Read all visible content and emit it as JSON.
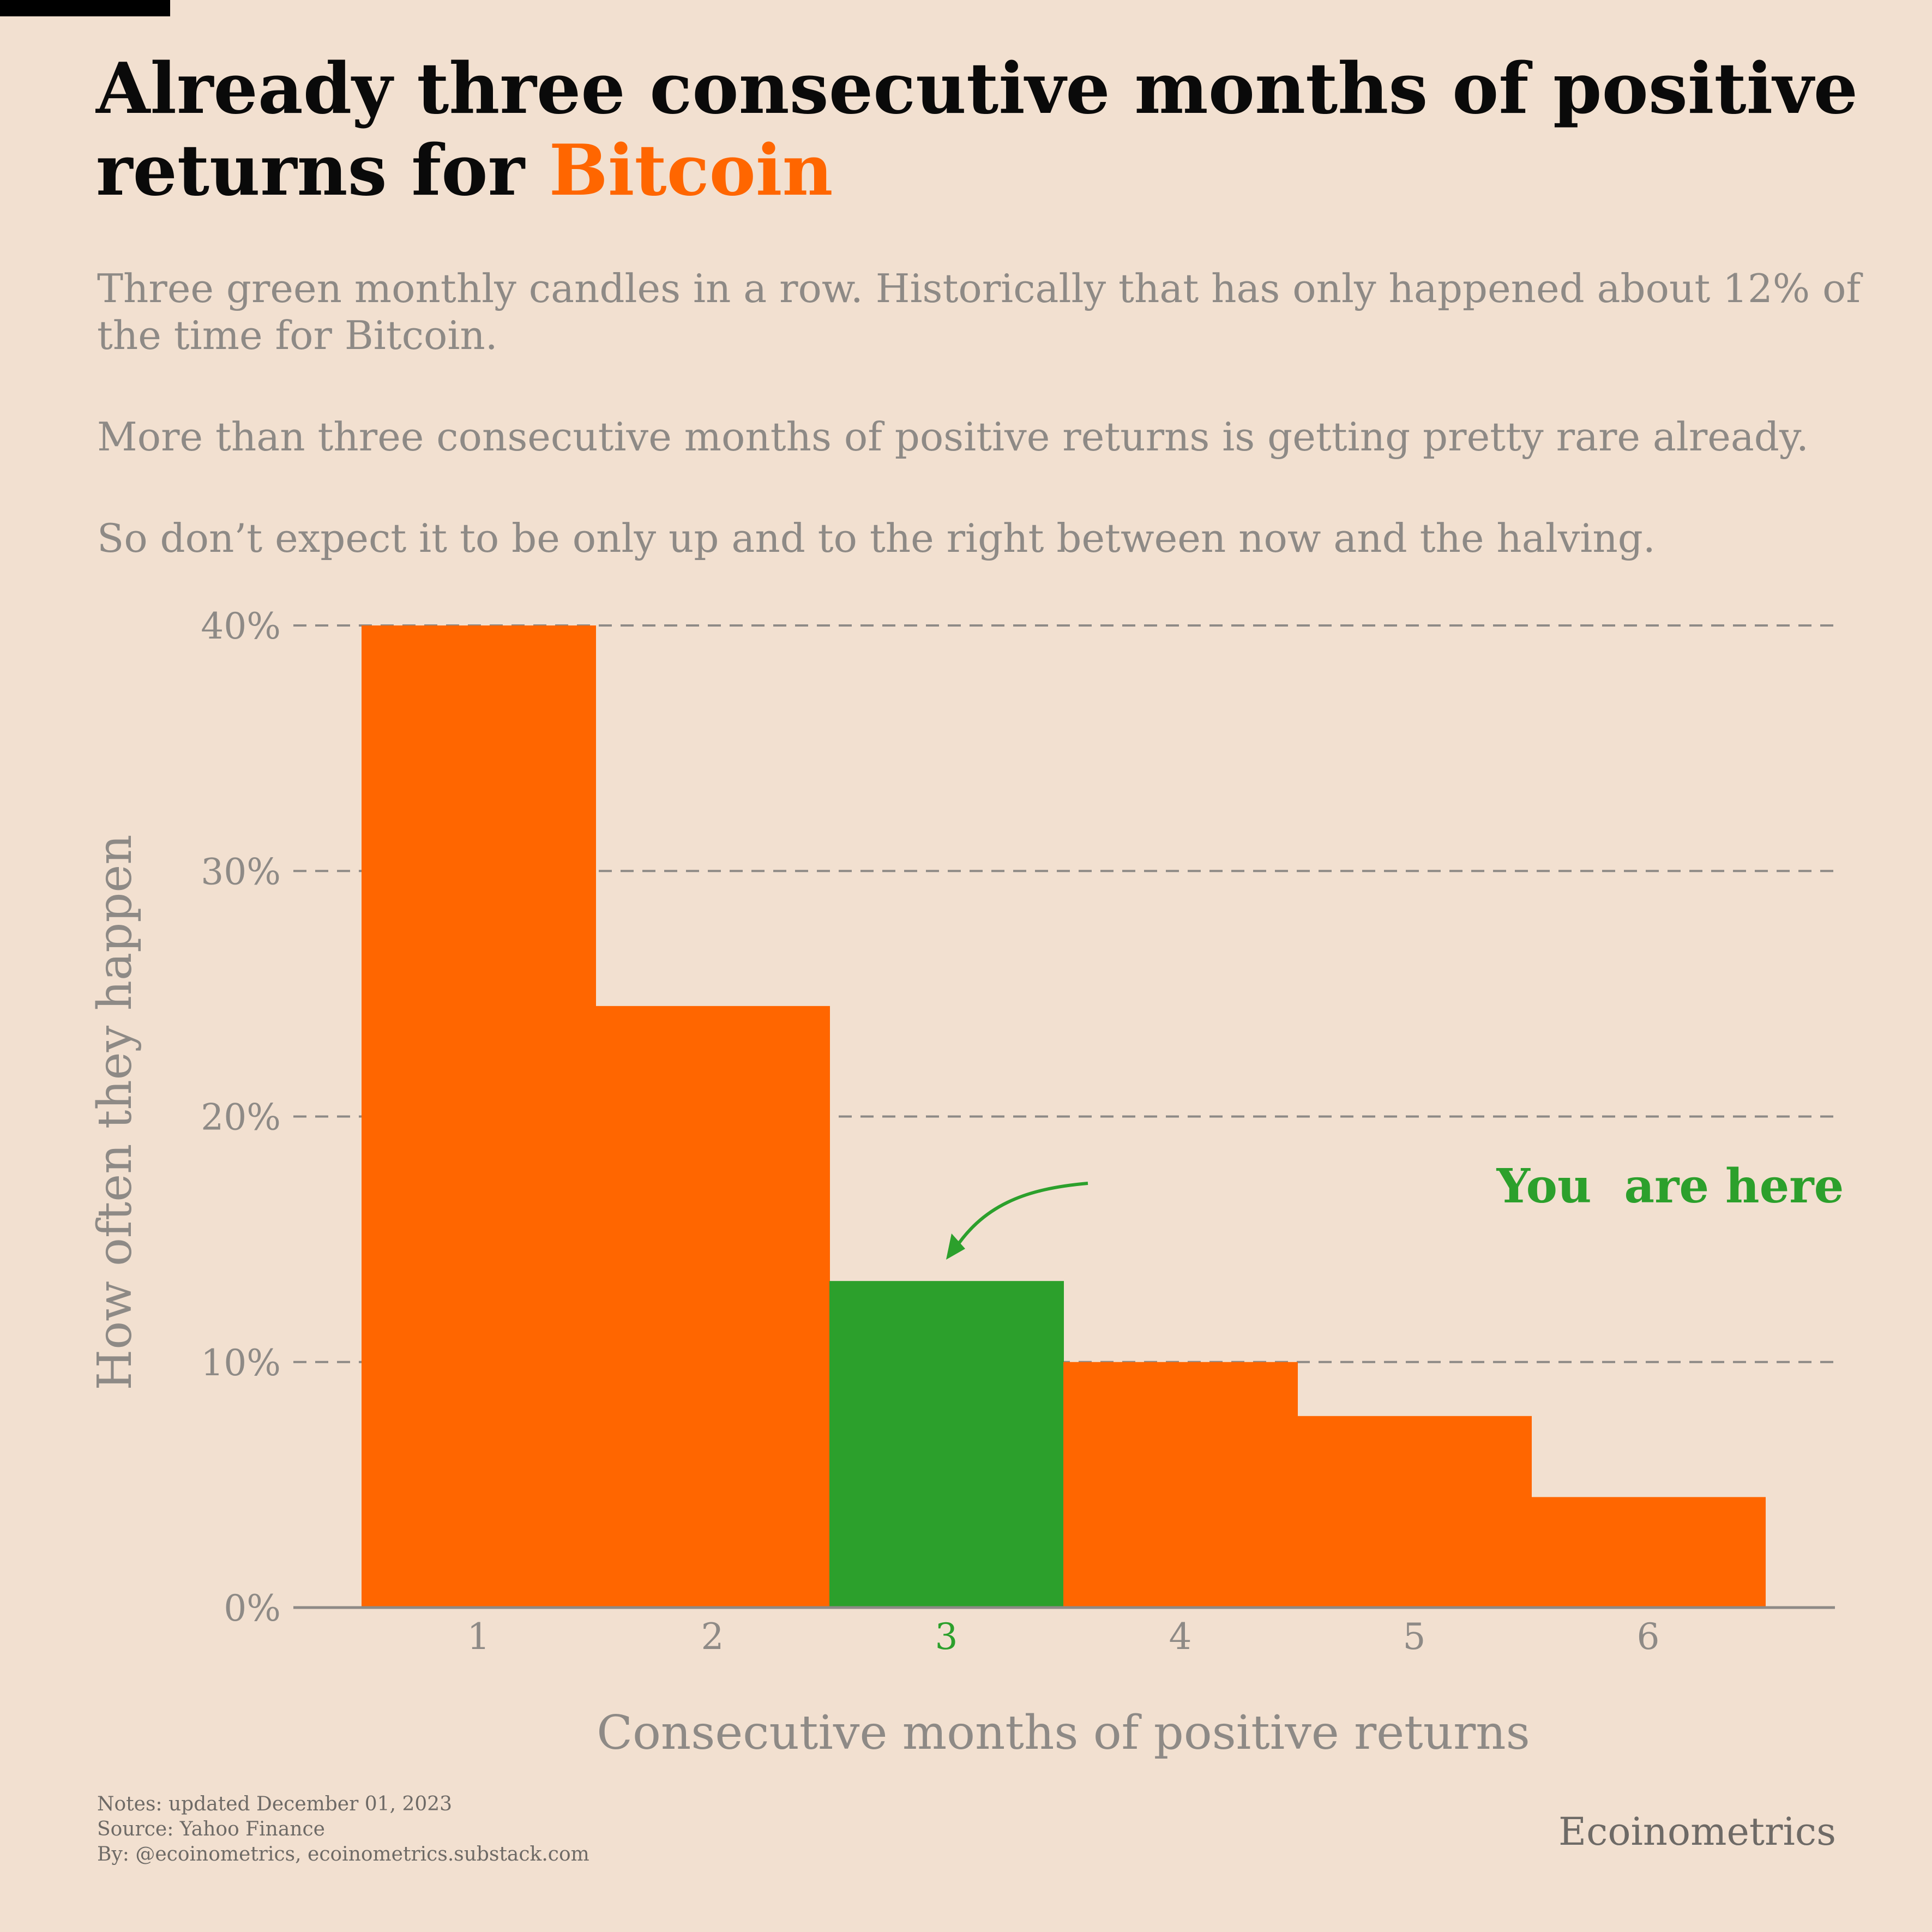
{
  "header": {
    "title_main": "Already three consecutive months of positive returns for ",
    "title_accent": "Bitcoin",
    "subtitle_1": "Three green monthly candles in a row. Historically that has only happened about 12% of the time for Bitcoin.",
    "subtitle_2": "More than three consecutive months of positive returns is getting pretty rare already.",
    "subtitle_3": "So don’t expect it to be only up and to the right between now and the halving."
  },
  "chart_data": {
    "type": "bar",
    "categories": [
      "1",
      "2",
      "3",
      "4",
      "5",
      "6"
    ],
    "values": [
      40.0,
      24.5,
      13.3,
      10.0,
      7.8,
      4.5
    ],
    "highlight_category": "3",
    "xlabel": "Consecutive months of positive returns",
    "ylabel": "How often they happen",
    "ylim": [
      0,
      40
    ],
    "yticks": [
      0,
      10,
      20,
      30,
      40
    ],
    "ytick_labels": [
      "0%",
      "10%",
      "20%",
      "30%",
      "40%"
    ],
    "grid": "horizontal dashed",
    "annotation": "You  are here",
    "colors": {
      "bar": "#ff6600",
      "highlight": "#2ca02c",
      "grid": "#8e8a86",
      "axis_text": "#8e8a86"
    }
  },
  "footer": {
    "notes": "Notes: updated December 01, 2023",
    "source": "Source: Yahoo Finance",
    "by": "By: @ecoinometrics, ecoinometrics.substack.com",
    "brand": "Ecoinometrics"
  }
}
